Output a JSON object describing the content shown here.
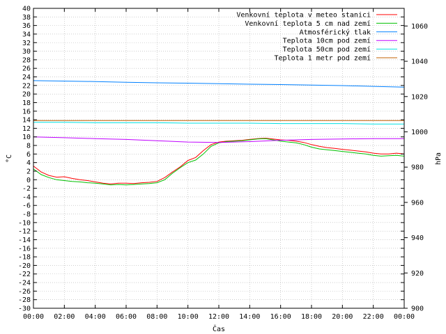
{
  "chart_data": {
    "type": "line",
    "xlabel": "Čas",
    "ylabel": "°C",
    "y2label": "hPa",
    "ylim": [
      -30,
      40
    ],
    "y2lim": [
      900,
      1070
    ],
    "xlim": [
      0,
      24
    ],
    "x_ticks": [
      "00:00",
      "02:00",
      "04:00",
      "06:00",
      "08:00",
      "10:00",
      "12:00",
      "14:00",
      "16:00",
      "18:00",
      "20:00",
      "22:00",
      "00:00"
    ],
    "y_ticks": [
      "-30",
      "-28",
      "-26",
      "-24",
      "-22",
      "-20",
      "-18",
      "-16",
      "-14",
      "-12",
      "-10",
      "-8",
      "-6",
      "-4",
      "-2",
      "0",
      "2",
      "4",
      "6",
      "8",
      "10",
      "12",
      "14",
      "16",
      "18",
      "20",
      "22",
      "24",
      "26",
      "28",
      "30",
      "32",
      "34",
      "36",
      "38",
      "40"
    ],
    "y2_ticks": [
      "900",
      "920",
      "940",
      "960",
      "980",
      "1000",
      "1020",
      "1040",
      "1060"
    ],
    "grid": true,
    "legend_position": "top-right",
    "series": [
      {
        "name": "Venkovní teplota v meteo stanici",
        "color": "#ff0000",
        "axis": "left",
        "x": [
          0,
          0.5,
          1,
          1.5,
          2,
          2.5,
          3,
          3.5,
          4,
          4.5,
          5,
          5.5,
          6,
          6.5,
          7,
          7.5,
          8,
          8.5,
          9,
          9.5,
          10,
          10.5,
          11,
          11.5,
          12,
          12.5,
          13,
          13.5,
          14,
          14.5,
          15,
          15.5,
          16,
          16.5,
          17,
          17.5,
          18,
          18.5,
          19,
          19.5,
          20,
          20.5,
          21,
          21.5,
          22,
          22.5,
          23,
          23.5,
          24
        ],
        "y": [
          3.2,
          1.8,
          1.0,
          0.6,
          0.7,
          0.3,
          0.0,
          -0.2,
          -0.5,
          -0.8,
          -1.0,
          -0.8,
          -0.8,
          -0.9,
          -0.7,
          -0.6,
          -0.4,
          0.5,
          1.8,
          3.0,
          4.5,
          5.2,
          6.8,
          8.2,
          8.8,
          9.0,
          9.1,
          9.2,
          9.4,
          9.6,
          9.7,
          9.5,
          9.3,
          9.2,
          9.0,
          8.7,
          8.2,
          7.8,
          7.5,
          7.3,
          7.1,
          6.9,
          6.7,
          6.5,
          6.2,
          6.0,
          6.0,
          6.2,
          6.0
        ]
      },
      {
        "name": "Venkovní teplota 5 cm nad zemí",
        "color": "#00c000",
        "axis": "left",
        "x": [
          0,
          0.5,
          1,
          1.5,
          2,
          2.5,
          3,
          3.5,
          4,
          4.5,
          5,
          5.5,
          6,
          6.5,
          7,
          7.5,
          8,
          8.5,
          9,
          9.5,
          10,
          10.5,
          11,
          11.5,
          12,
          12.5,
          13,
          13.5,
          14,
          14.5,
          15,
          15.5,
          16,
          16.5,
          17,
          17.5,
          18,
          18.5,
          19,
          19.5,
          20,
          20.5,
          21,
          21.5,
          22,
          22.5,
          23,
          23.5,
          24
        ],
        "y": [
          2.5,
          1.2,
          0.5,
          0.0,
          -0.2,
          -0.4,
          -0.5,
          -0.7,
          -0.8,
          -1.0,
          -1.2,
          -1.1,
          -1.2,
          -1.1,
          -1.0,
          -0.9,
          -0.7,
          0.0,
          1.5,
          2.8,
          4.0,
          4.6,
          6.0,
          7.8,
          8.6,
          8.9,
          9.0,
          9.1,
          9.3,
          9.5,
          9.6,
          9.3,
          9.0,
          8.8,
          8.6,
          8.2,
          7.6,
          7.2,
          7.0,
          6.8,
          6.6,
          6.4,
          6.2,
          6.0,
          5.7,
          5.5,
          5.6,
          5.7,
          5.5
        ]
      },
      {
        "name": "Atmosférický tlak",
        "color": "#0080ff",
        "axis": "right",
        "x": [
          0,
          2,
          4,
          6,
          8,
          10,
          12,
          14,
          16,
          18,
          20,
          22,
          24
        ],
        "y": [
          1029.0,
          1028.8,
          1028.5,
          1028.1,
          1027.8,
          1027.6,
          1027.3,
          1027.0,
          1026.8,
          1026.5,
          1026.2,
          1025.8,
          1025.3
        ]
      },
      {
        "name": "Teplota 10cm pod zemí",
        "color": "#c000ff",
        "axis": "left",
        "x": [
          0,
          2,
          4,
          6,
          8,
          10,
          12,
          14,
          16,
          18,
          20,
          22,
          24
        ],
        "y": [
          10.0,
          9.8,
          9.6,
          9.4,
          9.1,
          8.8,
          8.7,
          8.9,
          9.2,
          9.4,
          9.5,
          9.6,
          9.6
        ]
      },
      {
        "name": "Teplota 50cm pod zemí",
        "color": "#00e0e0",
        "axis": "left",
        "x": [
          0,
          2,
          4,
          6,
          8,
          10,
          12,
          14,
          16,
          18,
          20,
          22,
          24
        ],
        "y": [
          13.4,
          13.4,
          13.3,
          13.3,
          13.3,
          13.2,
          13.2,
          13.2,
          13.1,
          13.1,
          13.1,
          13.0,
          13.0
        ]
      },
      {
        "name": "Teplota 1 metr pod zemí",
        "color": "#c06000",
        "axis": "left",
        "x": [
          0,
          2,
          4,
          6,
          8,
          10,
          12,
          14,
          16,
          18,
          20,
          22,
          24
        ],
        "y": [
          13.8,
          13.8,
          13.8,
          13.8,
          13.8,
          13.8,
          13.8,
          13.8,
          13.8,
          13.8,
          13.8,
          13.8,
          13.8
        ]
      }
    ]
  }
}
